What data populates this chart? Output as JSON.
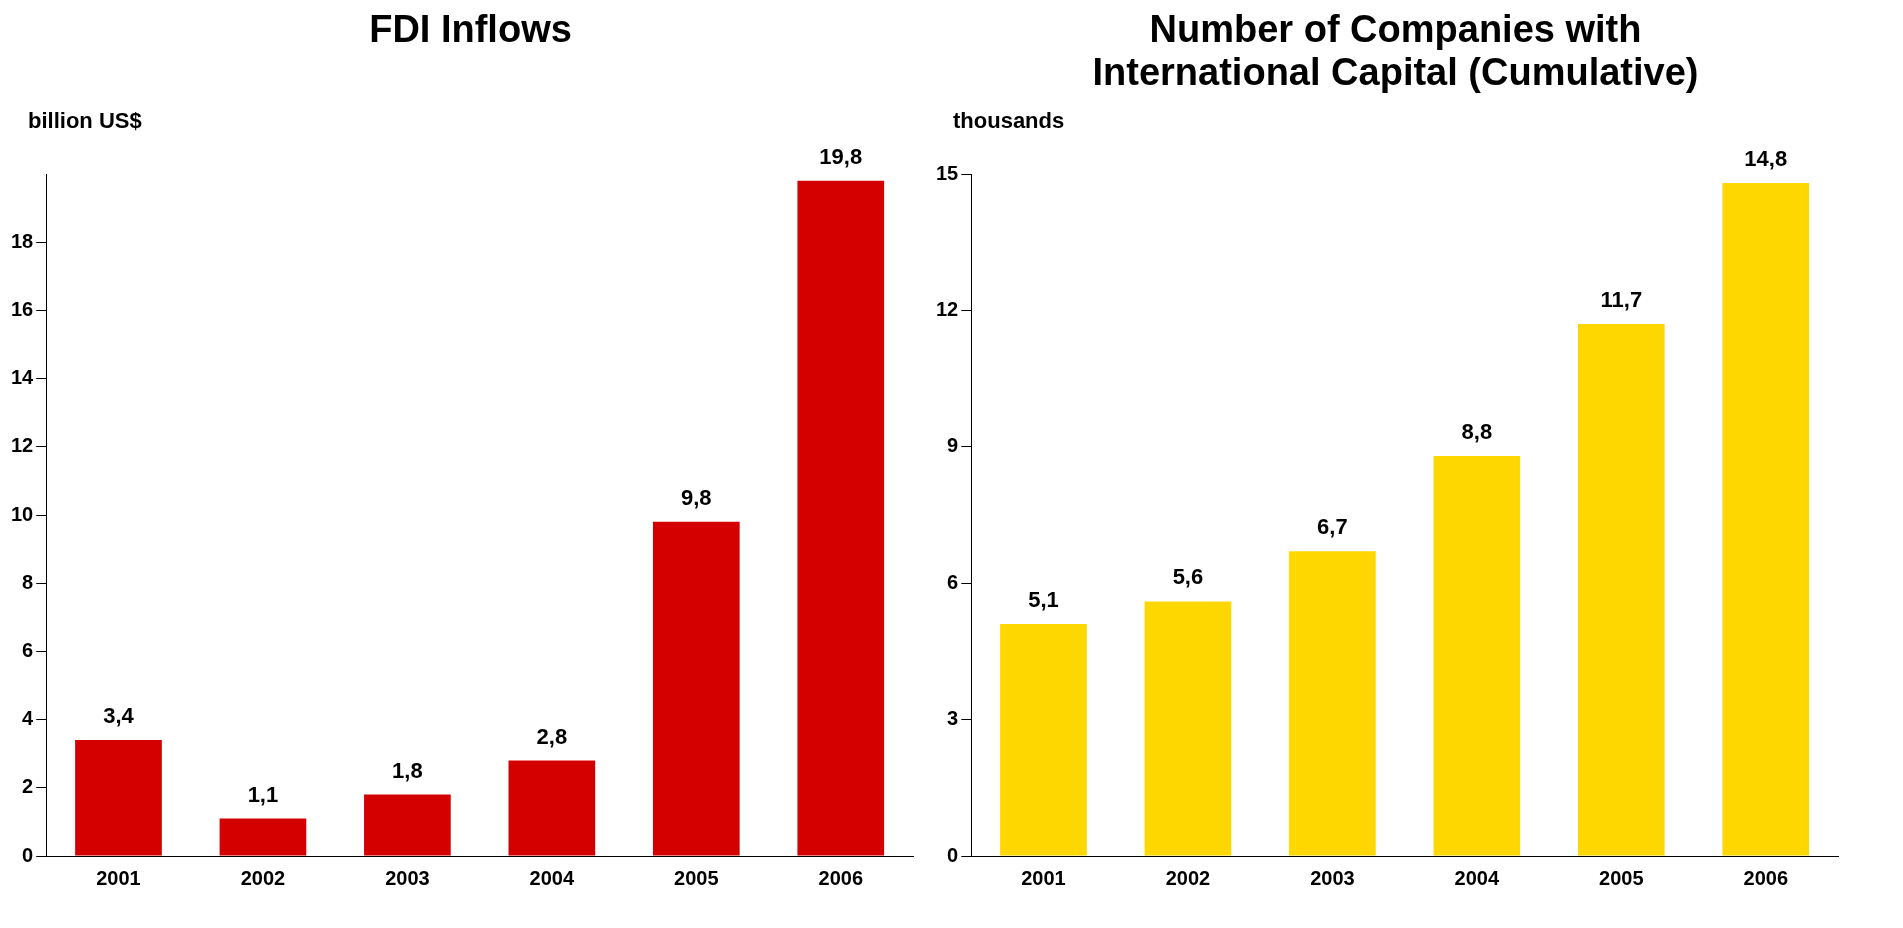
{
  "chart_data": [
    {
      "type": "bar",
      "title": "FDI Inflows",
      "ylabel": "billion US$",
      "categories": [
        "2001",
        "2002",
        "2003",
        "2004",
        "2005",
        "2006"
      ],
      "values": [
        3.4,
        1.1,
        1.8,
        2.8,
        9.8,
        19.8
      ],
      "value_labels": [
        "3,4",
        "1,1",
        "1,8",
        "2,8",
        "9,8",
        "19,8"
      ],
      "color": "#d40000",
      "ylim": [
        0,
        20
      ],
      "yticks": [
        0,
        2,
        4,
        6,
        8,
        10,
        12,
        14,
        16,
        18
      ],
      "grid": false,
      "legend": false
    },
    {
      "type": "bar",
      "title": "Number of Companies with International Capital (Cumulative)",
      "ylabel": "thousands",
      "categories": [
        "2001",
        "2002",
        "2003",
        "2004",
        "2005",
        "2006"
      ],
      "values": [
        5.1,
        5.6,
        6.7,
        8.8,
        11.7,
        14.8
      ],
      "value_labels": [
        "5,1",
        "5,6",
        "6,7",
        "8,8",
        "11,7",
        "14,8"
      ],
      "color": "#ffd700",
      "ylim": [
        0,
        15
      ],
      "yticks": [
        0,
        3,
        6,
        9,
        12,
        15
      ],
      "grid": false,
      "legend": false
    }
  ]
}
